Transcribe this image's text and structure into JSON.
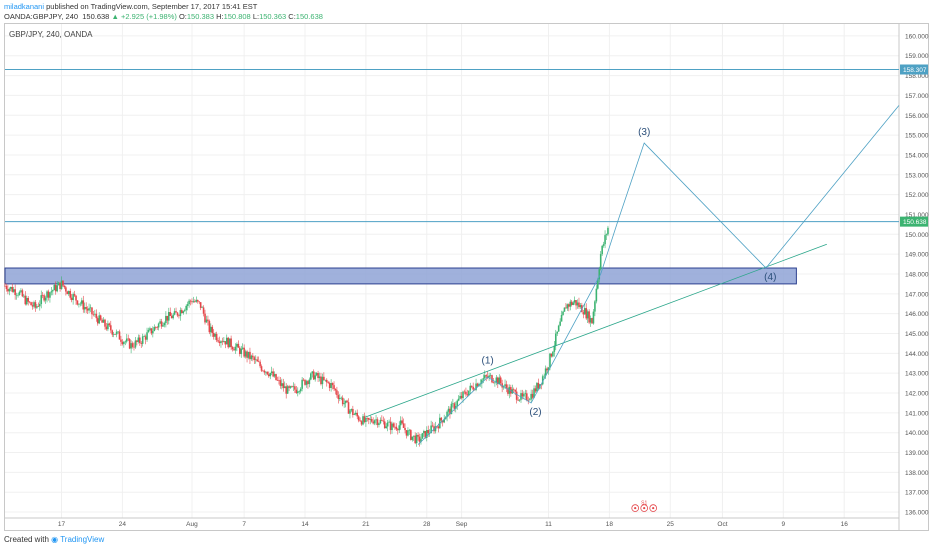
{
  "header": {
    "author": "miladkanani",
    "published": "published on TradingView.com, September 17, 2017 15:41 EST",
    "symbol_line": "OANDA:GBPJPY, 240",
    "last": "150.638",
    "change": "+2.925 (+1.98%)",
    "o_label": "O:",
    "o_value": "150.383",
    "h_label": "H:",
    "h_value": "150.808",
    "l_label": "L:",
    "l_value": "150.363",
    "c_label": "C:",
    "c_value": "150.638"
  },
  "chart_title": "GBP/JPY, 240, OANDA",
  "footer": {
    "created": "Created with",
    "brand": "TradingView"
  },
  "colors": {
    "up": "#3cb371",
    "down": "#e5464a",
    "line": "#4ea1c4",
    "zone_fill": "#8fa3d6",
    "zone_stroke": "#2b3f8f",
    "label": "#2b4f7a"
  },
  "chart_data": {
    "type": "candlestick",
    "title": "GBP/JPY, 240, OANDA",
    "ylim": [
      135.7,
      160.6
    ],
    "yticks": [
      136,
      137,
      138,
      139,
      140,
      141,
      142,
      143,
      144,
      145,
      146,
      147,
      148,
      149,
      150,
      151,
      152,
      153,
      154,
      155,
      156,
      157,
      158,
      159,
      160
    ],
    "ytick_labels": [
      "136.000",
      "137.000",
      "138.000",
      "139.000",
      "140.000",
      "141.000",
      "142.000",
      "143.000",
      "144.000",
      "145.000",
      "146.000",
      "147.000",
      "148.000",
      "149.000",
      "150.000",
      "151.000",
      "152.000",
      "153.000",
      "154.000",
      "155.000",
      "156.000",
      "157.000",
      "158.000",
      "159.000",
      "160.000"
    ],
    "xticks": [
      {
        "label": "17",
        "day": 17
      },
      {
        "label": "24",
        "day": 24
      },
      {
        "label": "Aug",
        "day": 32
      },
      {
        "label": "7",
        "day": 38
      },
      {
        "label": "14",
        "day": 45
      },
      {
        "label": "21",
        "day": 52
      },
      {
        "label": "28",
        "day": 59
      },
      {
        "label": "Sep",
        "day": 63
      },
      {
        "label": "11",
        "day": 73
      },
      {
        "label": "18",
        "day": 80
      },
      {
        "label": "25",
        "day": 87
      },
      {
        "label": "Oct",
        "day": 93
      },
      {
        "label": "9",
        "day": 100
      },
      {
        "label": "16",
        "day": 107
      }
    ],
    "xlim": [
      10.5,
      113.3
    ],
    "price_path": [
      [
        10.5,
        147.4
      ],
      [
        12,
        147.1
      ],
      [
        13,
        146.6
      ],
      [
        14,
        146.3
      ],
      [
        15,
        146.9
      ],
      [
        16,
        147.2
      ],
      [
        17,
        147.5
      ],
      [
        18,
        147.0
      ],
      [
        19,
        146.6
      ],
      [
        20,
        146.2
      ],
      [
        21,
        145.8
      ],
      [
        22,
        145.4
      ],
      [
        23,
        145.1
      ],
      [
        24,
        144.7
      ],
      [
        25,
        144.4
      ],
      [
        26,
        144.6
      ],
      [
        27,
        145.0
      ],
      [
        28,
        145.4
      ],
      [
        29,
        145.8
      ],
      [
        30,
        145.9
      ],
      [
        31,
        146.3
      ],
      [
        32,
        146.7
      ],
      [
        33,
        146.4
      ],
      [
        34,
        145.2
      ],
      [
        35,
        144.8
      ],
      [
        36,
        144.6
      ],
      [
        37,
        144.3
      ],
      [
        38,
        144.0
      ],
      [
        39,
        143.7
      ],
      [
        40,
        143.3
      ],
      [
        41,
        143.0
      ],
      [
        42,
        142.5
      ],
      [
        43,
        142.1
      ],
      [
        44,
        142.2
      ],
      [
        45,
        142.6
      ],
      [
        46,
        142.9
      ],
      [
        47,
        142.6
      ],
      [
        48,
        142.4
      ],
      [
        49,
        141.8
      ],
      [
        50,
        141.2
      ],
      [
        51,
        140.8
      ],
      [
        52,
        140.5
      ],
      [
        53,
        140.7
      ],
      [
        54,
        140.5
      ],
      [
        55,
        140.3
      ],
      [
        56,
        140.4
      ],
      [
        57,
        139.9
      ],
      [
        58,
        139.6
      ],
      [
        59,
        140.0
      ],
      [
        60,
        140.3
      ],
      [
        61,
        140.8
      ],
      [
        62,
        141.3
      ],
      [
        63,
        141.8
      ],
      [
        64,
        142.2
      ],
      [
        65,
        142.6
      ],
      [
        66,
        142.8
      ],
      [
        67,
        142.7
      ],
      [
        68,
        142.3
      ],
      [
        69,
        142.0
      ],
      [
        70,
        141.7
      ],
      [
        71,
        141.9
      ],
      [
        72,
        142.5
      ],
      [
        73,
        143.5
      ],
      [
        74,
        145.0
      ],
      [
        75,
        146.4
      ],
      [
        76,
        146.6
      ],
      [
        77,
        146.2
      ],
      [
        78,
        145.6
      ],
      [
        79,
        149.0
      ],
      [
        80,
        150.6
      ]
    ],
    "resistance_lines": [
      {
        "label": "158.307",
        "value": 158.307
      },
      {
        "label": "150.638",
        "value": 150.638
      }
    ],
    "zone": {
      "from_day": 10.5,
      "to_day": 101.5,
      "low": 147.5,
      "high": 148.3
    },
    "trendline": {
      "from": [
        52,
        140.8
      ],
      "to": [
        105,
        149.5
      ]
    },
    "wave_path": [
      [
        58,
        139.4
      ],
      [
        66,
        142.8
      ],
      [
        71,
        141.5
      ],
      [
        79,
        148.0
      ],
      [
        81,
        150.7
      ],
      [
        84,
        154.6
      ],
      [
        98,
        148.3
      ],
      [
        113.3,
        156.5
      ]
    ],
    "wave_labels": [
      {
        "label": "(1)",
        "day": 66,
        "value": 143.5
      },
      {
        "label": "(2)",
        "day": 71.5,
        "value": 140.9
      },
      {
        "label": "(3)",
        "day": 84,
        "value": 155.0
      },
      {
        "label": "(4)",
        "day": 98.5,
        "value": 147.7
      }
    ],
    "event_marker": {
      "label": "S1",
      "day": 84,
      "value": 136.2
    }
  }
}
